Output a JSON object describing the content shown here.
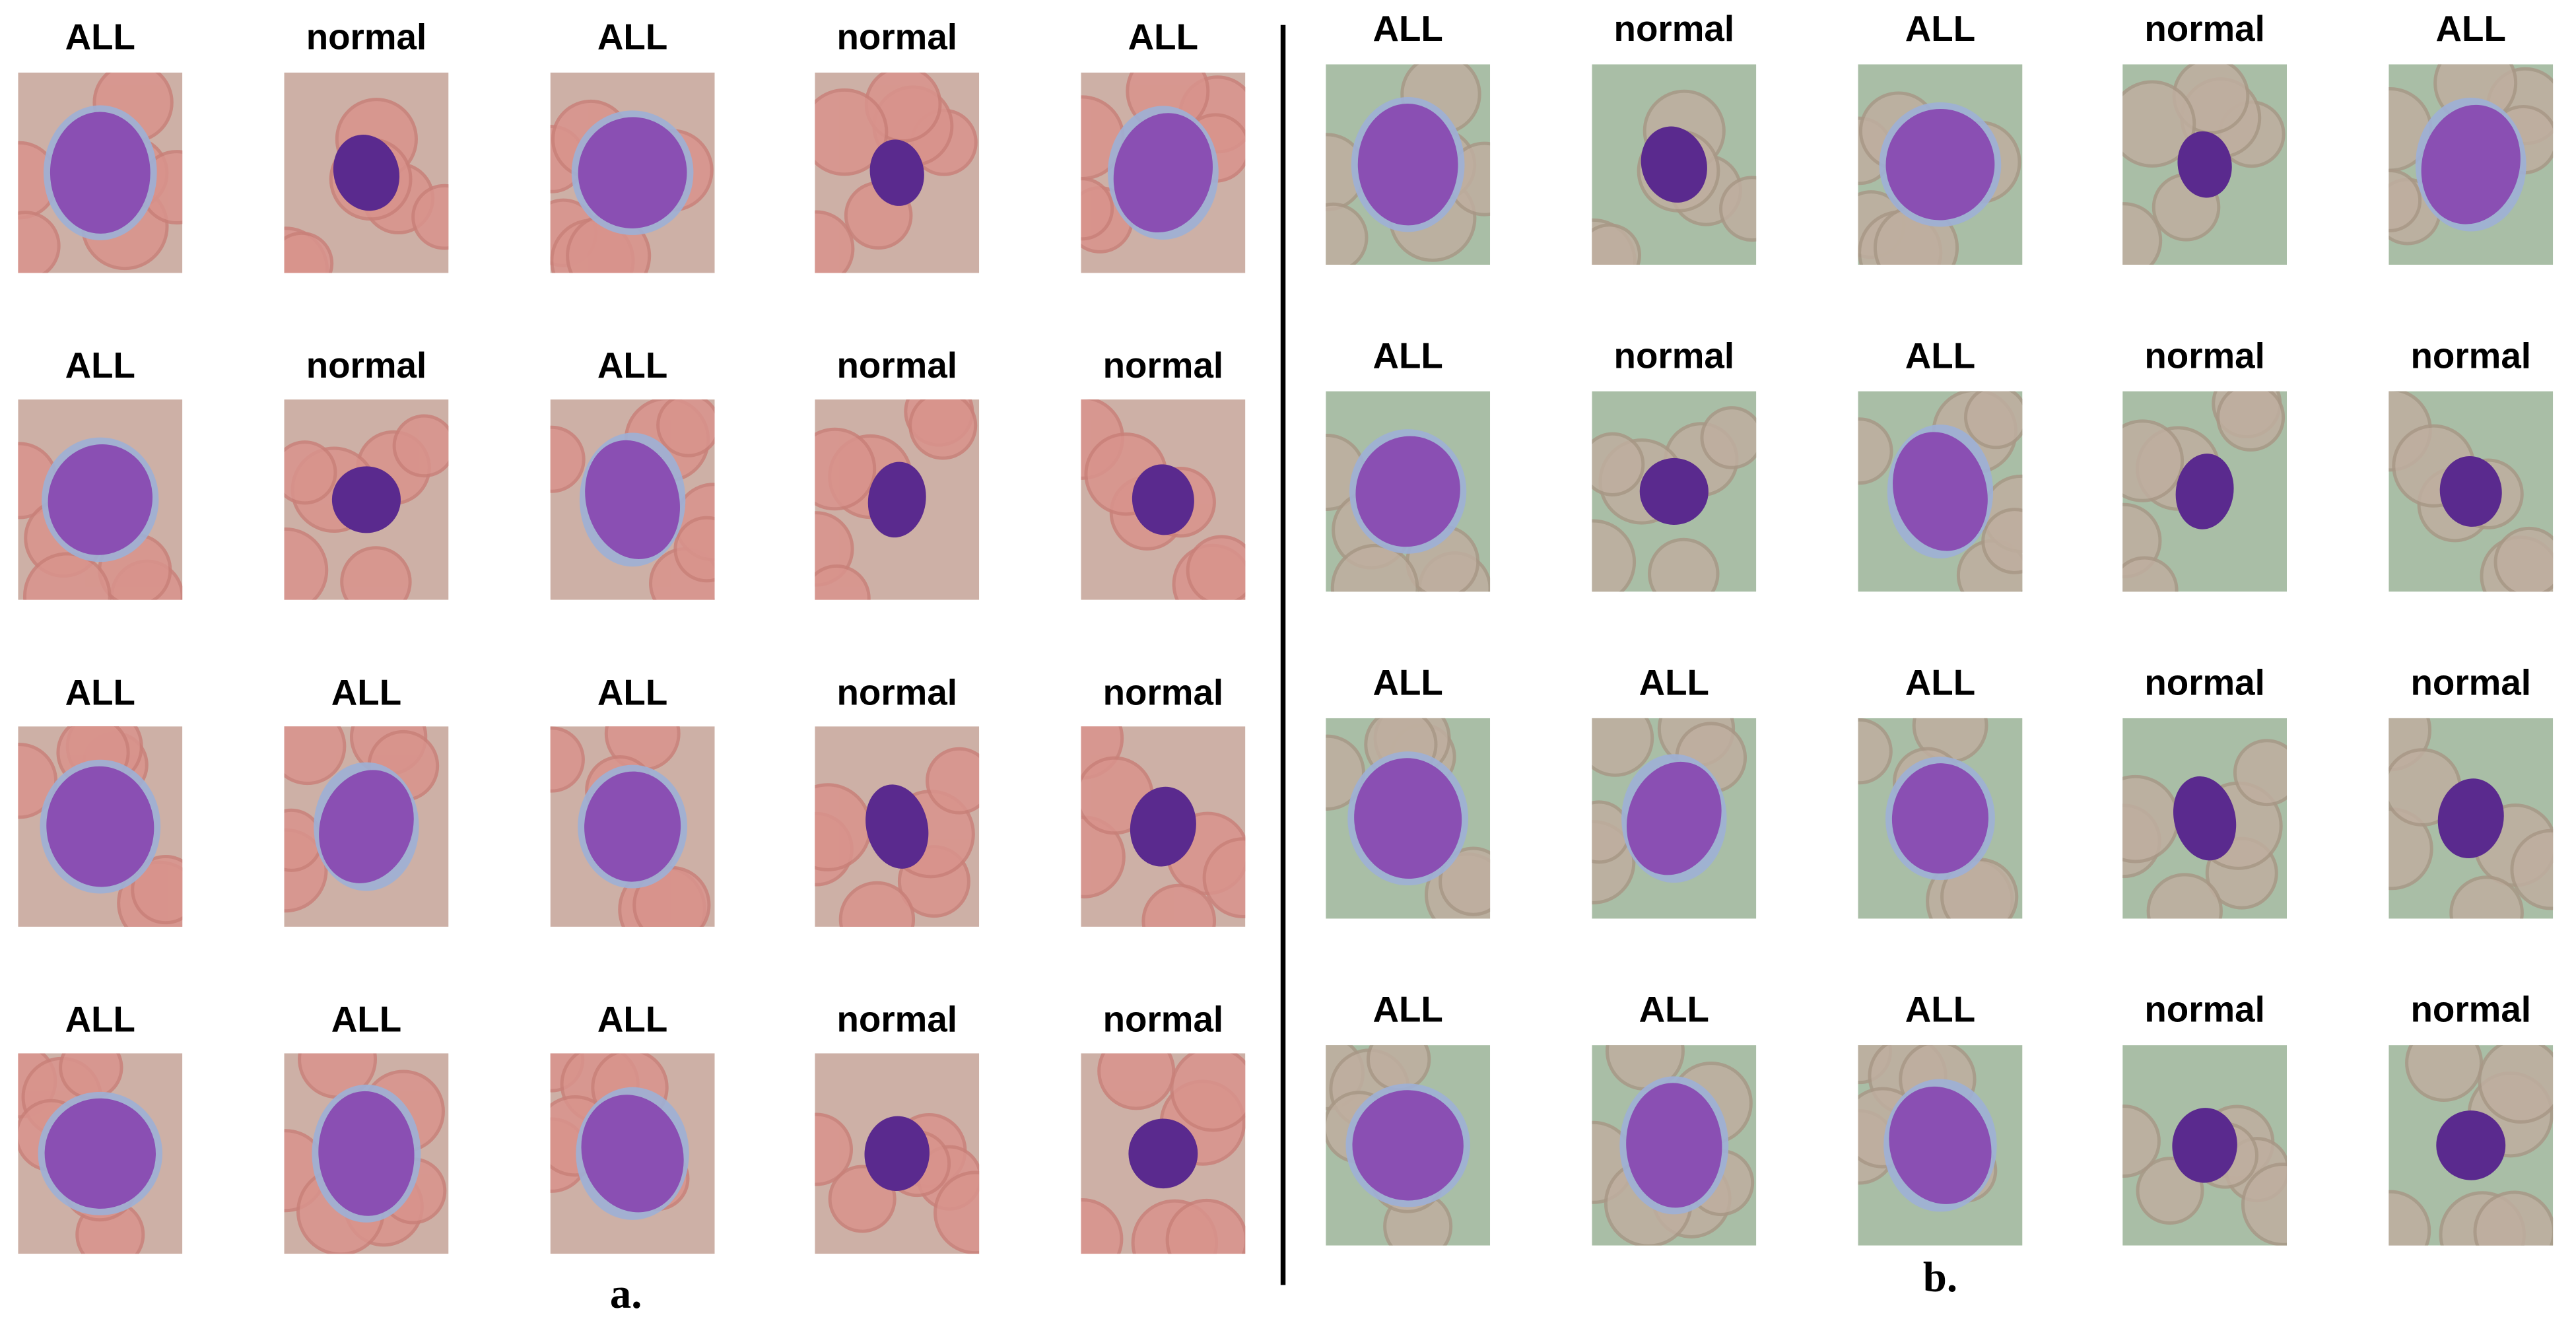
{
  "panels": [
    {
      "caption": "a.",
      "rows": [
        [
          "ALL",
          "normal",
          "ALL",
          "normal",
          "ALL"
        ],
        [
          "ALL",
          "normal",
          "ALL",
          "normal",
          "normal"
        ],
        [
          "ALL",
          "ALL",
          "ALL",
          "normal",
          "normal"
        ],
        [
          "ALL",
          "ALL",
          "ALL",
          "normal",
          "normal"
        ]
      ]
    },
    {
      "caption": "b.",
      "rows": [
        [
          "ALL",
          "normal",
          "ALL",
          "normal",
          "ALL"
        ],
        [
          "ALL",
          "normal",
          "ALL",
          "normal",
          "normal"
        ],
        [
          "ALL",
          "ALL",
          "ALL",
          "normal",
          "normal"
        ],
        [
          "ALL",
          "ALL",
          "ALL",
          "normal",
          "normal"
        ]
      ]
    }
  ]
}
